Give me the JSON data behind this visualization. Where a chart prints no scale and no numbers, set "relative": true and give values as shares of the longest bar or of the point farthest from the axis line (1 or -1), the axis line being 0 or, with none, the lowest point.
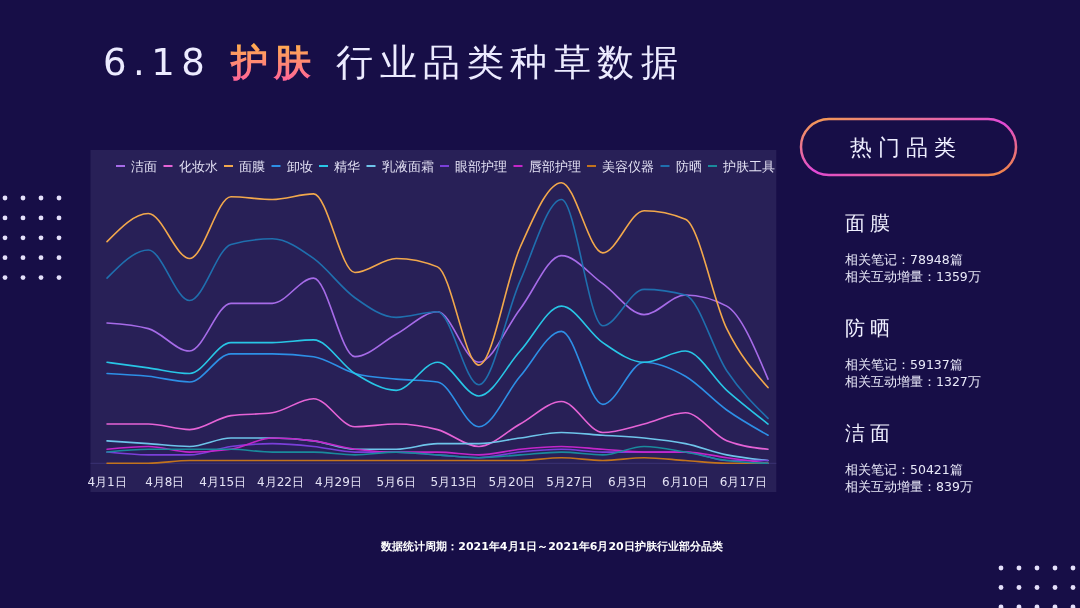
{
  "chart_data": [
    {
      "type": "line",
      "title": "6.18 护肤 行业品类种草数据",
      "relative": true,
      "legend": "top",
      "tick_labels": "x",
      "x": [
        "2021-04-01",
        "2021-04-06",
        "2021-04-11",
        "2021-04-16",
        "2021-04-21",
        "2021-04-26",
        "2021-05-01",
        "2021-05-06",
        "2021-05-11",
        "2021-05-16",
        "2021-05-21",
        "2021-05-26",
        "2021-05-31",
        "2021-06-05",
        "2021-06-10",
        "2021-06-15",
        "2021-06-20"
      ],
      "xlim": [
        "2021-03-30",
        "2021-06-21"
      ],
      "xticks": [
        {
          "value": "2021-04-01",
          "label": "4月1日"
        },
        {
          "value": "2021-04-08",
          "label": "4月8日"
        },
        {
          "value": "2021-04-15",
          "label": "4月15日"
        },
        {
          "value": "2021-04-22",
          "label": "4月22日"
        },
        {
          "value": "2021-04-29",
          "label": "4月29日"
        },
        {
          "value": "2021-05-06",
          "label": "5月6日"
        },
        {
          "value": "2021-05-13",
          "label": "5月13日"
        },
        {
          "value": "2021-05-20",
          "label": "5月20日"
        },
        {
          "value": "2021-05-27",
          "label": "5月27日"
        },
        {
          "value": "2021-06-03",
          "label": "6月3日"
        },
        {
          "value": "2021-06-10",
          "label": "6月10日"
        },
        {
          "value": "2021-06-17",
          "label": "6月17日"
        }
      ],
      "series": [
        {
          "name": "洁面",
          "color": "#a66be8",
          "values": [
            0.5,
            0.48,
            0.4,
            0.57,
            0.57,
            0.66,
            0.38,
            0.46,
            0.54,
            0.36,
            0.55,
            0.74,
            0.64,
            0.53,
            0.6,
            0.56,
            0.3
          ]
        },
        {
          "name": "化妆水",
          "color": "#e563d6",
          "values": [
            0.14,
            0.14,
            0.12,
            0.17,
            0.18,
            0.23,
            0.13,
            0.14,
            0.12,
            0.06,
            0.14,
            0.22,
            0.11,
            0.14,
            0.18,
            0.08,
            0.05
          ]
        },
        {
          "name": "面膜",
          "color": "#f2a84c",
          "values": [
            0.79,
            0.89,
            0.73,
            0.95,
            0.94,
            0.96,
            0.68,
            0.73,
            0.7,
            0.35,
            0.77,
            1,
            0.75,
            0.9,
            0.87,
            0.48,
            0.27
          ]
        },
        {
          "name": "卸妆",
          "color": "#2d8fe6",
          "values": [
            0.32,
            0.31,
            0.29,
            0.39,
            0.39,
            0.38,
            0.32,
            0.3,
            0.29,
            0.13,
            0.31,
            0.47,
            0.21,
            0.36,
            0.31,
            0.19,
            0.1
          ]
        },
        {
          "name": "精华",
          "color": "#28c6e6",
          "values": [
            0.36,
            0.34,
            0.32,
            0.43,
            0.43,
            0.44,
            0.32,
            0.26,
            0.36,
            0.24,
            0.4,
            0.56,
            0.43,
            0.36,
            0.4,
            0.26,
            0.14
          ]
        },
        {
          "name": "乳液面霜",
          "color": "#6ec4ea",
          "values": [
            0.08,
            0.07,
            0.06,
            0.09,
            0.09,
            0.08,
            0.05,
            0.05,
            0.07,
            0.07,
            0.09,
            0.11,
            0.1,
            0.09,
            0.07,
            0.03,
            0.01
          ]
        },
        {
          "name": "眼部护理",
          "color": "#7a3fd9",
          "values": [
            0.04,
            0.03,
            0.03,
            0.06,
            0.07,
            0.06,
            0.04,
            0.04,
            0.03,
            0.02,
            0.04,
            0.05,
            0.04,
            0.04,
            0.04,
            0.01,
            0.01
          ]
        },
        {
          "name": "唇部护理",
          "color": "#c326c9",
          "values": [
            0.05,
            0.06,
            0.04,
            0.05,
            0.09,
            0.08,
            0.05,
            0.04,
            0.04,
            0.03,
            0.05,
            0.06,
            0.05,
            0.04,
            0.04,
            0.02,
            0
          ]
        },
        {
          "name": "美容仪器",
          "color": "#c2731d",
          "values": [
            0,
            0,
            0.01,
            0.01,
            0.01,
            0.01,
            0.01,
            0.01,
            0.01,
            0.01,
            0.01,
            0.02,
            0.01,
            0.02,
            0.01,
            0,
            0
          ]
        },
        {
          "name": "防晒",
          "color": "#1f6fae",
          "values": [
            0.66,
            0.76,
            0.58,
            0.78,
            0.8,
            0.73,
            0.59,
            0.52,
            0.54,
            0.28,
            0.65,
            0.94,
            0.49,
            0.62,
            0.6,
            0.33,
            0.16
          ]
        },
        {
          "name": "护肤工具",
          "color": "#1a8a9c",
          "values": [
            0.04,
            0.05,
            0.05,
            0.05,
            0.04,
            0.04,
            0.03,
            0.04,
            0.03,
            0.02,
            0.03,
            0.04,
            0.03,
            0.06,
            0.04,
            0.01,
            0
          ]
        }
      ],
      "annotations": [
        "数据统计周期：2021年4月1日～2021年6月20日护肤行业部分品类"
      ]
    },
    {
      "type": "other",
      "title": "热门品类",
      "annotations": [
        "面膜",
        "相关笔记：78948篇",
        "相关互动增量：1359万",
        "防晒",
        "相关笔记：59137篇",
        "相关互动增量：1327万",
        "洁面",
        "相关笔记：50421篇",
        "相关互动增量：839万"
      ]
    }
  ]
}
